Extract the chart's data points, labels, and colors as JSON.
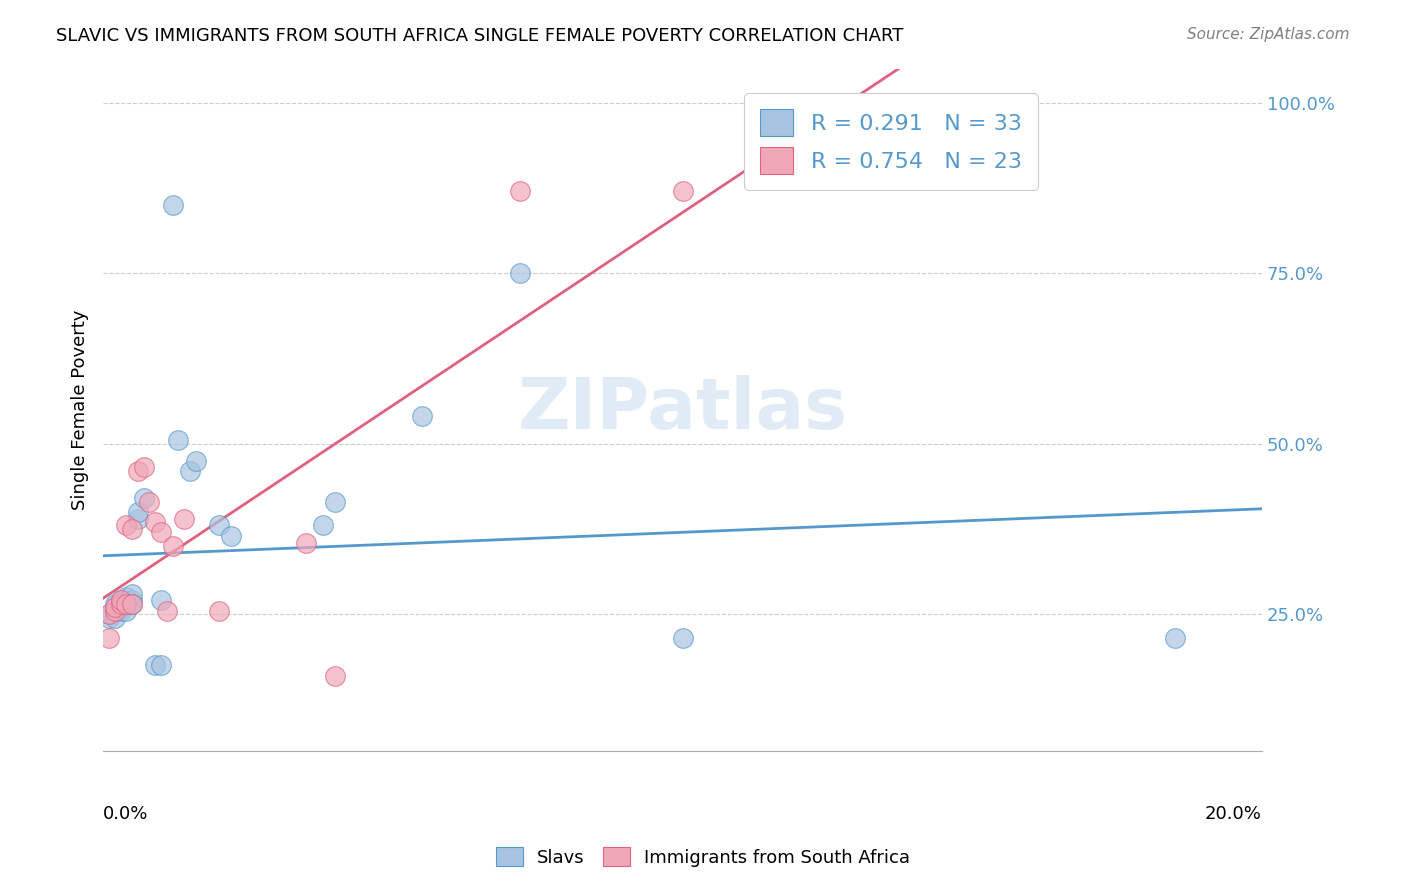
{
  "title": "SLAVIC VS IMMIGRANTS FROM SOUTH AFRICA SINGLE FEMALE POVERTY CORRELATION CHART",
  "source": "Source: ZipAtlas.com",
  "ylabel": "Single Female Poverty",
  "ytick_labels": [
    "25.0%",
    "50.0%",
    "75.0%",
    "100.0%"
  ],
  "ytick_values": [
    0.25,
    0.5,
    0.75,
    1.0
  ],
  "xlim": [
    0.0,
    0.2
  ],
  "ylim": [
    0.05,
    1.05
  ],
  "slavs_color": "#a8c4e0",
  "sa_color": "#f0a8b8",
  "line_slavs_color": "#5599cc",
  "line_sa_color": "#e06080",
  "tick_color": "#5599cc",
  "watermark": "ZIPatlas",
  "slavs_x": [
    0.001,
    0.001,
    0.002,
    0.002,
    0.002,
    0.003,
    0.003,
    0.003,
    0.003,
    0.004,
    0.004,
    0.004,
    0.005,
    0.005,
    0.005,
    0.006,
    0.006,
    0.007,
    0.009,
    0.01,
    0.01,
    0.012,
    0.013,
    0.015,
    0.016,
    0.02,
    0.022,
    0.038,
    0.04,
    0.055,
    0.072,
    0.1,
    0.185
  ],
  "slavs_y": [
    0.245,
    0.25,
    0.26,
    0.265,
    0.245,
    0.255,
    0.26,
    0.268,
    0.27,
    0.255,
    0.265,
    0.275,
    0.27,
    0.28,
    0.265,
    0.39,
    0.4,
    0.42,
    0.175,
    0.175,
    0.27,
    0.85,
    0.505,
    0.46,
    0.475,
    0.38,
    0.365,
    0.38,
    0.415,
    0.54,
    0.75,
    0.215,
    0.215
  ],
  "sa_x": [
    0.001,
    0.001,
    0.002,
    0.002,
    0.003,
    0.003,
    0.004,
    0.004,
    0.005,
    0.005,
    0.006,
    0.007,
    0.008,
    0.009,
    0.01,
    0.011,
    0.012,
    0.014,
    0.02,
    0.035,
    0.04,
    0.072,
    0.1
  ],
  "sa_y": [
    0.215,
    0.25,
    0.255,
    0.26,
    0.265,
    0.27,
    0.265,
    0.38,
    0.265,
    0.375,
    0.46,
    0.465,
    0.415,
    0.385,
    0.37,
    0.255,
    0.35,
    0.39,
    0.255,
    0.355,
    0.16,
    0.87,
    0.87
  ]
}
